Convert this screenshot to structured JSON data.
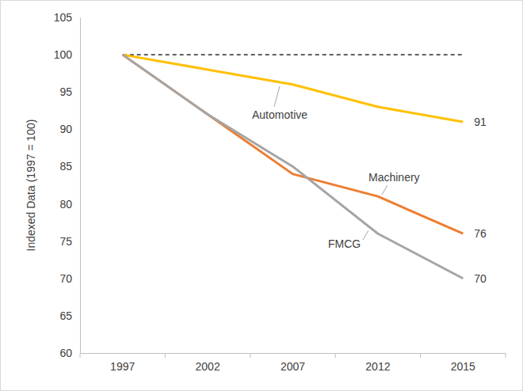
{
  "chart_data": {
    "type": "line",
    "y_label": "Indexed Data (1997 = 100)",
    "categories": [
      "1997",
      "2002",
      "2007",
      "2012",
      "2015"
    ],
    "series": [
      {
        "name": "Automotive",
        "color": "#ffc000",
        "values": [
          100,
          98,
          96,
          93,
          91
        ],
        "value_labels": [
          null,
          null,
          null,
          null,
          "91"
        ]
      },
      {
        "name": "Machinery",
        "color": "#ed7d31",
        "values": [
          100,
          92,
          84,
          81,
          76
        ],
        "value_labels": [
          null,
          null,
          null,
          null,
          "76"
        ]
      },
      {
        "name": "FMCG",
        "color": "#a5a5a5",
        "values": [
          100,
          92,
          85,
          76,
          70
        ],
        "value_labels": [
          null,
          null,
          null,
          null,
          "70"
        ]
      }
    ],
    "reference_value": 100,
    "ylim": [
      60,
      105
    ],
    "yticks": [
      60,
      65,
      70,
      75,
      80,
      85,
      90,
      95,
      100,
      105
    ],
    "grid": false
  }
}
